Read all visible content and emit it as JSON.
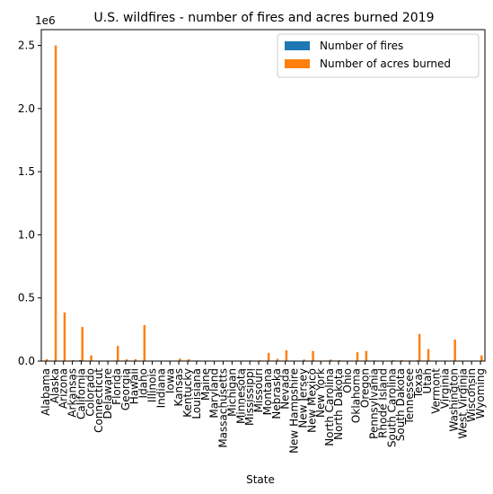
{
  "chart_data": {
    "type": "bar",
    "title": "U.S. wildfires - number of fires and acres burned 2019",
    "xlabel": "State",
    "ylabel": "",
    "y_offset_text": "1e6",
    "ylim": [
      0,
      2625000
    ],
    "yticks": [
      0,
      500000,
      1000000,
      1500000,
      2000000,
      2500000
    ],
    "ytick_labels": [
      "0.0",
      "0.5",
      "1.0",
      "1.5",
      "2.0",
      "2.5"
    ],
    "grid": false,
    "legend_position": "top-right",
    "categories": [
      "Alabama",
      "Alaska",
      "Arizona",
      "Arkansas",
      "California",
      "Colorado",
      "Connecticut",
      "Delaware",
      "Florida",
      "Georgia",
      "Hawaii",
      "Idaho",
      "Illinois",
      "Indiana",
      "Iowa",
      "Kansas",
      "Kentucky",
      "Louisiana",
      "Maine",
      "Maryland",
      "Massachusetts",
      "Michigan",
      "Minnesota",
      "Mississippi",
      "Missouri",
      "Montana",
      "Nebraska",
      "Nevada",
      "New Hampshire",
      "New Jersey",
      "New Mexico",
      "New York",
      "North Carolina",
      "North Dakota",
      "Ohio",
      "Oklahoma",
      "Oregon",
      "Pennsylvania",
      "Rhode Island",
      "South Carolina",
      "South Dakota",
      "Tennessee",
      "Texas",
      "Utah",
      "Vermont",
      "Virginia",
      "Washington",
      "West Virginia",
      "Wisconsin",
      "Wyoming"
    ],
    "series": [
      {
        "name": "Number of fires",
        "color": "#1f77b4",
        "values": [
          1200,
          700,
          1800,
          900,
          8000,
          1000,
          100,
          50,
          2500,
          3000,
          400,
          1400,
          200,
          100,
          300,
          2000,
          1200,
          1000,
          300,
          100,
          500,
          400,
          1500,
          800,
          600,
          2000,
          1000,
          800,
          100,
          1000,
          700,
          600,
          4000,
          1000,
          500,
          1800,
          2000,
          1200,
          80,
          2400,
          700,
          900,
          5000,
          1200,
          100,
          1000,
          1800,
          800,
          900,
          700
        ]
      },
      {
        "name": "Number of acres burned",
        "color": "#ff7f0e",
        "values": [
          15000,
          2500000,
          385000,
          8000,
          270000,
          45000,
          200,
          100,
          120000,
          14000,
          15000,
          285000,
          500,
          500,
          2000,
          20000,
          15000,
          5000,
          500,
          1000,
          1000,
          3000,
          4000,
          5000,
          6000,
          65000,
          18000,
          85000,
          200,
          12000,
          80000,
          1000,
          12000,
          8000,
          1000,
          70000,
          80000,
          5000,
          100,
          7000,
          8000,
          5000,
          215000,
          95000,
          100,
          4000,
          170000,
          3000,
          3000,
          45000
        ]
      }
    ]
  }
}
